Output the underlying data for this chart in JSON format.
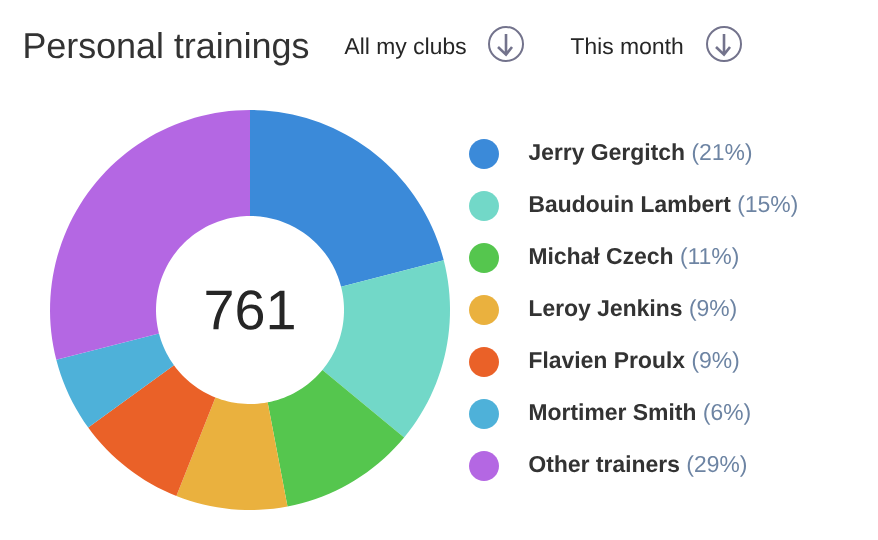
{
  "chart_data": {
    "type": "donut",
    "title": "Personal trainings",
    "annotations": [
      "All my clubs",
      "This month",
      "761"
    ],
    "categories": [
      "Jerry Gergitch",
      "Baudouin Lambert",
      "Michał Czech",
      "Leroy Jenkins",
      "Flavien Proulx",
      "Mortimer Smith",
      "Other trainers"
    ],
    "values": [
      21,
      15,
      11,
      9,
      9,
      6,
      29
    ],
    "value_labels": [
      "(21%)",
      "(15%)",
      "(11%)",
      "(9%)",
      "(9%)",
      "(6%)",
      "(29%)"
    ],
    "colors": [
      "#3b8ad9",
      "#72d8c8",
      "#55c64e",
      "#eab13e",
      "#ea6128",
      "#4eb1d9",
      "#b467e3"
    ],
    "legend": "right"
  }
}
